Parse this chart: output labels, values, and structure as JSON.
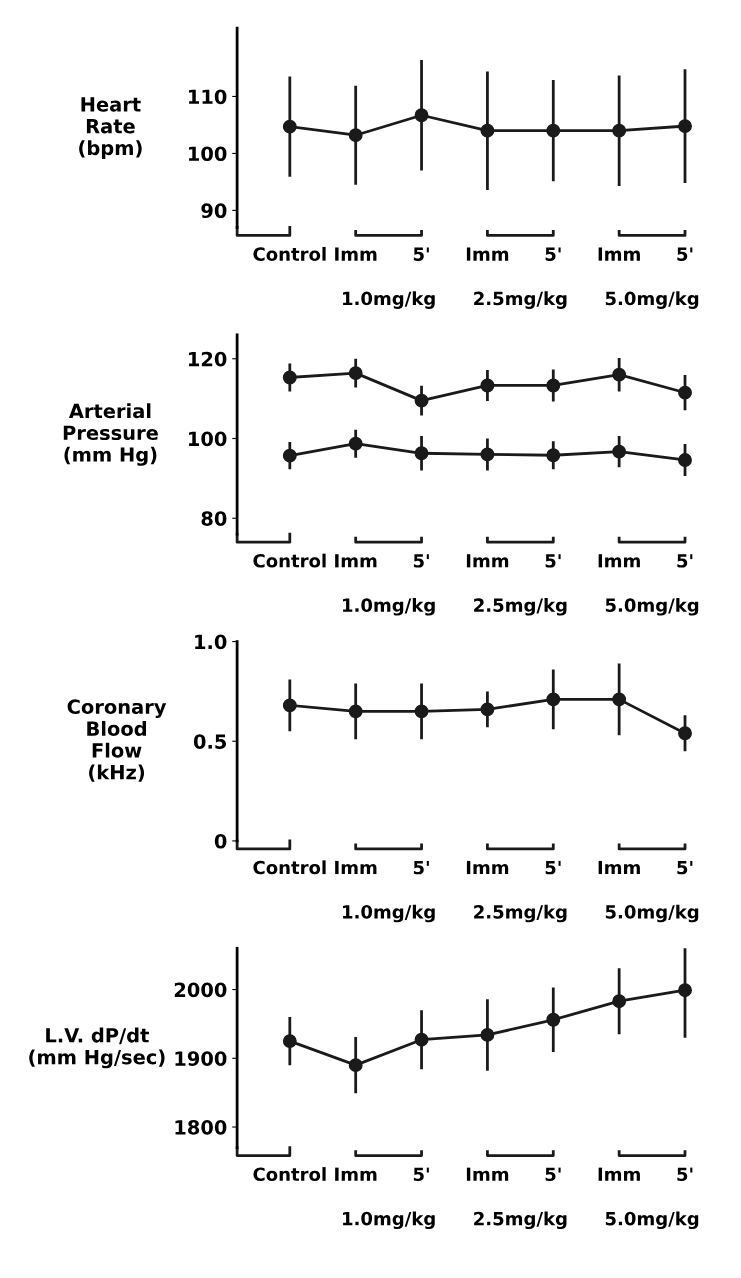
{
  "chart_data": [
    {
      "type": "line",
      "ylabel": "Heart\nRate\n(bpm)",
      "categories": [
        "Control",
        "Imm",
        "5'",
        "Imm",
        "5'",
        "Imm",
        "5'"
      ],
      "annotations": [
        "1.0mg/kg",
        "2.5mg/kg",
        "5.0mg/kg"
      ],
      "ylim": [
        87,
        122
      ],
      "yticks": [
        90,
        100,
        110
      ],
      "marker": "circle",
      "line_style": "solid",
      "grid": false,
      "legend": false,
      "series": [
        {
          "color": "#1a1a1a",
          "values": [
            104.7,
            103.2,
            106.7,
            104.0,
            104.0,
            104.0,
            104.8
          ],
          "errors": [
            8.8,
            8.7,
            9.7,
            10.4,
            8.9,
            9.7,
            10.0
          ]
        }
      ]
    },
    {
      "type": "line",
      "ylabel": "Arterial\nPressure\n(mm Hg)",
      "categories": [
        "Control",
        "Imm",
        "5'",
        "Imm",
        "5'",
        "Imm",
        "5'"
      ],
      "annotations": [
        "1.0mg/kg",
        "2.5mg/kg",
        "5.0mg/kg"
      ],
      "ylim": [
        76,
        126
      ],
      "yticks": [
        80,
        100,
        120
      ],
      "marker": "circle",
      "line_style": "solid",
      "grid": false,
      "legend": false,
      "series": [
        {
          "color": "#1a1a1a",
          "values": [
            115.3,
            116.4,
            109.5,
            113.3,
            113.3,
            116.0,
            111.5
          ],
          "errors": [
            3.5,
            3.6,
            3.7,
            3.9,
            4.0,
            4.2,
            4.4
          ]
        },
        {
          "color": "#1a1a1a",
          "values": [
            95.7,
            98.7,
            96.3,
            96.0,
            95.8,
            96.7,
            94.6
          ],
          "errors": [
            3.4,
            3.5,
            4.3,
            4.0,
            3.5,
            3.9,
            4.0
          ]
        }
      ]
    },
    {
      "type": "line",
      "ylabel": "Coronary\nBlood\nFlow\n(kHz)",
      "categories": [
        "Control",
        "Imm",
        "5'",
        "Imm",
        "5'",
        "Imm",
        "5'"
      ],
      "annotations": [
        "1.0mg/kg",
        "2.5mg/kg",
        "5.0mg/kg"
      ],
      "ylim": [
        0,
        1.0
      ],
      "yticks": [
        0,
        0.5,
        {
          "value": 1.0,
          "label": "1.0"
        }
      ],
      "marker": "circle",
      "line_style": "solid",
      "grid": false,
      "legend": false,
      "series": [
        {
          "color": "#1a1a1a",
          "values": [
            0.68,
            0.65,
            0.65,
            0.66,
            0.71,
            0.71,
            0.54
          ],
          "errors": [
            0.13,
            0.14,
            0.14,
            0.09,
            0.15,
            0.18,
            0.09
          ]
        }
      ]
    },
    {
      "type": "line",
      "ylabel": "L.V. dP/dt\n(mm Hg/sec)",
      "categories": [
        "Control",
        "Imm",
        "5'",
        "Imm",
        "5'",
        "Imm",
        "5'"
      ],
      "annotations": [
        "1.0mg/kg",
        "2.5mg/kg",
        "5.0mg/kg"
      ],
      "ylim": [
        1770,
        2060
      ],
      "yticks": [
        1800,
        1900,
        2000
      ],
      "marker": "circle",
      "line_style": "solid",
      "grid": false,
      "legend": false,
      "series": [
        {
          "color": "#1a1a1a",
          "values": [
            1925,
            1890,
            1927,
            1934,
            1956,
            1983,
            1999
          ],
          "errors": [
            35,
            41,
            43,
            52,
            47,
            48,
            69
          ]
        }
      ]
    }
  ]
}
